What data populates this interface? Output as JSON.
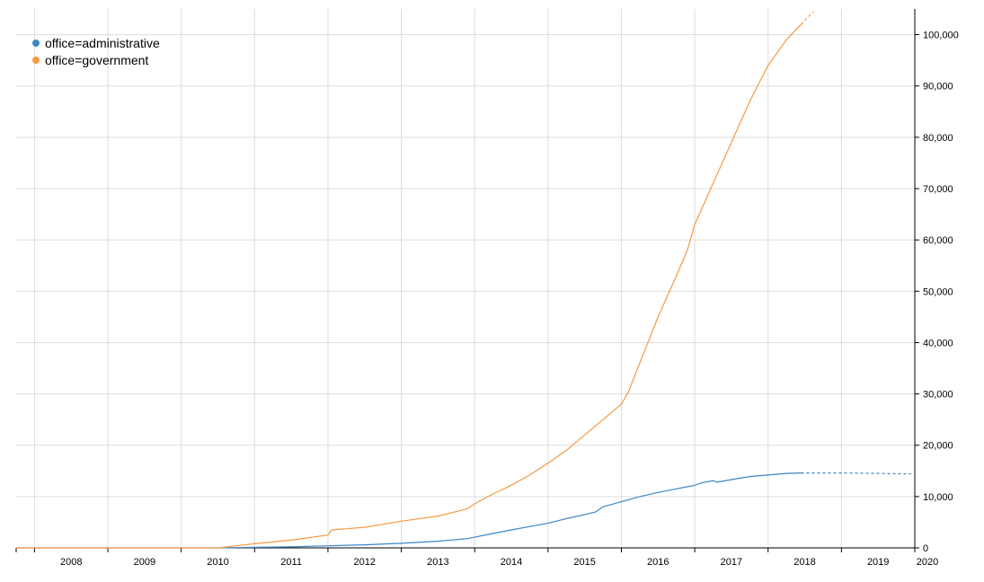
{
  "chart_data": {
    "type": "line",
    "legend_position": "top-left",
    "grid": true,
    "xlim": [
      2007.75,
      2020
    ],
    "ylim": [
      0,
      105000
    ],
    "x_ticks": [
      "2008",
      "2009",
      "2010",
      "2011",
      "2012",
      "2013",
      "2014",
      "2015",
      "2016",
      "2017",
      "2018",
      "2019",
      "2020"
    ],
    "y_ticks": [
      "0",
      "10,000",
      "20,000",
      "30,000",
      "40,000",
      "50,000",
      "60,000",
      "70,000",
      "80,000",
      "90,000",
      "100,000"
    ],
    "y_axis_side": "right",
    "series": [
      {
        "name": "office=administrative",
        "color": "#3d85c6",
        "x": [
          2007.75,
          2010.5,
          2011.0,
          2011.5,
          2012.0,
          2012.5,
          2013.0,
          2013.5,
          2013.9,
          2014.25,
          2014.5,
          2015.0,
          2015.25,
          2015.5,
          2015.65,
          2015.75,
          2016.0,
          2016.25,
          2016.5,
          2016.75,
          2017.0,
          2017.1,
          2017.25,
          2017.3,
          2017.5,
          2017.75,
          2018.0,
          2018.25,
          2018.45
        ],
        "y": [
          0,
          0,
          100,
          200,
          400,
          600,
          900,
          1300,
          1800,
          2800,
          3500,
          4800,
          5700,
          6500,
          7000,
          8000,
          9000,
          10000,
          10800,
          11500,
          12200,
          12700,
          13100,
          12800,
          13300,
          13900,
          14200,
          14500,
          14600
        ],
        "projected": {
          "x": [
            2018.45,
            2019.0,
            2019.5,
            2019.95
          ],
          "y": [
            14600,
            14600,
            14500,
            14400
          ]
        }
      },
      {
        "name": "office=government",
        "color": "#f59a42",
        "x": [
          2007.75,
          2010.5,
          2011.0,
          2011.5,
          2012.0,
          2012.05,
          2012.5,
          2013.0,
          2013.5,
          2013.9,
          2014.0,
          2014.25,
          2014.5,
          2014.75,
          2015.0,
          2015.25,
          2015.5,
          2015.75,
          2016.0,
          2016.1,
          2016.25,
          2016.5,
          2016.75,
          2016.9,
          2017.0,
          2017.25,
          2017.5,
          2017.75,
          2018.0,
          2018.25,
          2018.45
        ],
        "y": [
          0,
          0,
          800,
          1500,
          2500,
          3500,
          4000,
          5200,
          6200,
          7600,
          8600,
          10500,
          12200,
          14200,
          16500,
          19000,
          22000,
          25000,
          28000,
          30500,
          36000,
          45000,
          53000,
          58000,
          63000,
          71000,
          79000,
          87000,
          94000,
          99000,
          102000
        ],
        "projected": {
          "x": [
            2018.45,
            2018.62
          ],
          "y": [
            102000,
            104500
          ]
        }
      }
    ]
  }
}
